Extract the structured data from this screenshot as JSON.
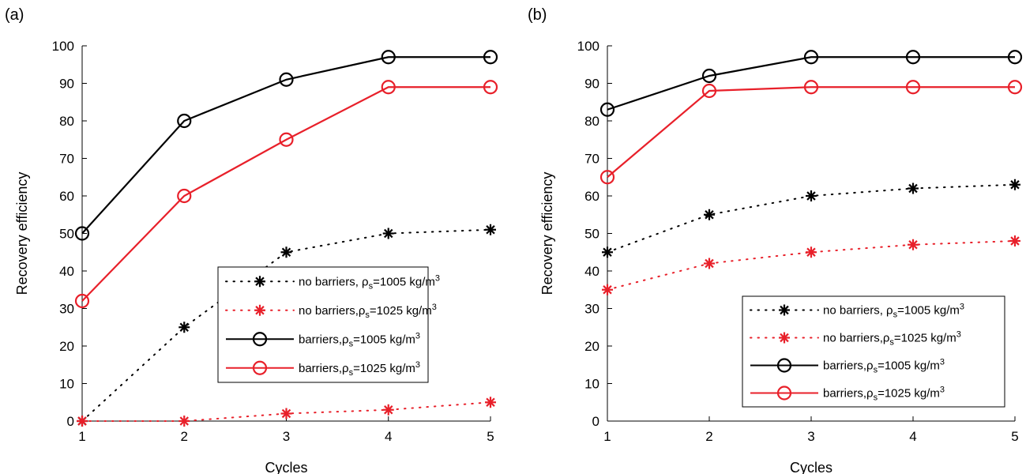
{
  "colors": {
    "black": "#000000",
    "red": "#e8202a"
  },
  "panels": [
    {
      "label": "(a)"
    },
    {
      "label": "(b)"
    }
  ],
  "chart_data": [
    {
      "type": "line",
      "xlabel": "Cycles",
      "ylabel": "Recovery efficiency",
      "xlim": [
        1,
        5
      ],
      "ylim": [
        0,
        100
      ],
      "xticks": [
        1,
        2,
        3,
        4,
        5
      ],
      "yticks": [
        0,
        10,
        20,
        30,
        40,
        50,
        60,
        70,
        80,
        90,
        100
      ],
      "grid": false,
      "legend_position": "lower-right",
      "x": [
        1,
        2,
        3,
        4,
        5
      ],
      "series": [
        {
          "key": "nb1005",
          "legend": {
            "text": "no barriers, ",
            "sub": "s",
            "rest": "=1005 kg/m",
            "sup": "3"
          },
          "color": "#000000",
          "style": "dotted",
          "marker": "star",
          "values": [
            0,
            25,
            45,
            50,
            51
          ]
        },
        {
          "key": "nb1025",
          "legend": {
            "text": "no barriers,",
            "sub": "s",
            "rest": "=1025 kg/m",
            "sup": "3"
          },
          "color": "#e8202a",
          "style": "dotted",
          "marker": "star",
          "values": [
            0,
            0,
            2,
            3,
            5
          ]
        },
        {
          "key": "b1005",
          "legend": {
            "text": "barriers,",
            "sub": "s",
            "rest": "=1005 kg/m",
            "sup": "3"
          },
          "color": "#000000",
          "style": "solid",
          "marker": "circle",
          "values": [
            50,
            80,
            91,
            97,
            97
          ]
        },
        {
          "key": "b1025",
          "legend": {
            "text": "barriers,",
            "sub": "s",
            "rest": "=1025 kg/m",
            "sup": "3"
          },
          "color": "#e8202a",
          "style": "solid",
          "marker": "circle",
          "values": [
            32,
            60,
            75,
            89,
            89
          ]
        }
      ]
    },
    {
      "type": "line",
      "xlabel": "Cycles",
      "ylabel": "Recovery efficiency",
      "xlim": [
        1,
        5
      ],
      "ylim": [
        0,
        100
      ],
      "xticks": [
        1,
        2,
        3,
        4,
        5
      ],
      "yticks": [
        0,
        10,
        20,
        30,
        40,
        50,
        60,
        70,
        80,
        90,
        100
      ],
      "grid": false,
      "legend_position": "lower-right",
      "x": [
        1,
        2,
        3,
        4,
        5
      ],
      "series": [
        {
          "key": "nb1005",
          "legend": {
            "text": "no barriers, ",
            "sub": "s",
            "rest": "=1005 kg/m",
            "sup": "3"
          },
          "color": "#000000",
          "style": "dotted",
          "marker": "star",
          "values": [
            45,
            55,
            60,
            62,
            63
          ]
        },
        {
          "key": "nb1025",
          "legend": {
            "text": "no barriers,",
            "sub": "s",
            "rest": "=1025 kg/m",
            "sup": "3"
          },
          "color": "#e8202a",
          "style": "dotted",
          "marker": "star",
          "values": [
            35,
            42,
            45,
            47,
            48
          ]
        },
        {
          "key": "b1005",
          "legend": {
            "text": "barriers,",
            "sub": "s",
            "rest": "=1005 kg/m",
            "sup": "3"
          },
          "color": "#000000",
          "style": "solid",
          "marker": "circle",
          "values": [
            83,
            92,
            97,
            97,
            97
          ]
        },
        {
          "key": "b1025",
          "legend": {
            "text": "barriers,",
            "sub": "s",
            "rest": "=1025 kg/m",
            "sup": "3"
          },
          "color": "#e8202a",
          "style": "solid",
          "marker": "circle",
          "values": [
            65,
            88,
            89,
            89,
            89
          ]
        }
      ]
    }
  ]
}
